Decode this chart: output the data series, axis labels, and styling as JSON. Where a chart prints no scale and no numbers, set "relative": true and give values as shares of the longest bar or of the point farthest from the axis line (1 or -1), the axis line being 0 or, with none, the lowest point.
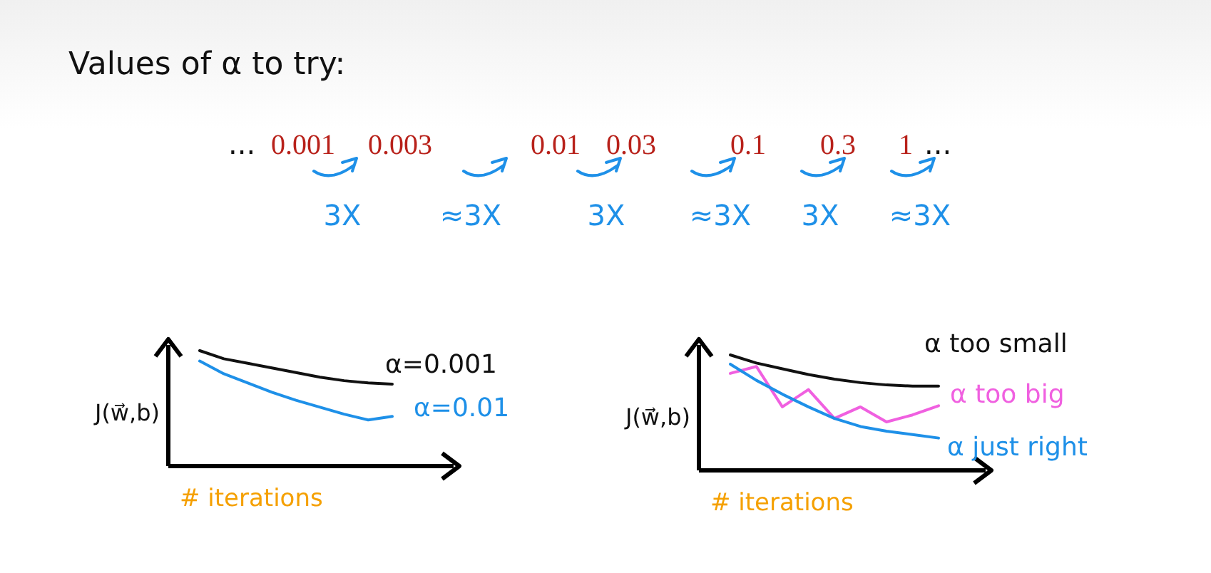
{
  "chart_data": [
    {
      "type": "other",
      "title": "Values of α to try:",
      "annotations": [
        "...",
        "0.001",
        "0.003",
        "0.01",
        "0.03",
        "0.1",
        "0.3",
        "1",
        "...",
        "3X",
        "≈3X",
        "3X",
        "≈3X",
        "3X",
        "≈3X"
      ]
    },
    {
      "type": "line",
      "relative": true,
      "xlabel": "# iterations",
      "ylabel": "J(w⃗,b)",
      "categories": [
        null,
        null,
        null,
        null,
        null,
        null,
        null,
        null,
        null
      ],
      "series": [
        {
          "name": "α=0.001",
          "color": "#111111",
          "values": [
            1,
            0.93,
            0.89,
            0.85,
            0.81,
            0.77,
            0.74,
            0.72,
            0.71
          ]
        },
        {
          "name": "α=0.01",
          "color": "#1e90e8",
          "values": [
            0.91,
            0.8,
            0.72,
            0.64,
            0.57,
            0.51,
            0.45,
            0.4,
            0.43
          ]
        }
      ]
    },
    {
      "type": "line",
      "relative": true,
      "xlabel": "# iterations",
      "ylabel": "J(w⃗,b)",
      "categories": [
        null,
        null,
        null,
        null,
        null,
        null,
        null,
        null,
        null
      ],
      "series": [
        {
          "name": "α too small",
          "color": "#111111",
          "values": [
            1,
            0.93,
            0.88,
            0.83,
            0.79,
            0.76,
            0.74,
            0.73,
            0.73
          ]
        },
        {
          "name": "α too big",
          "color": "#f060e0",
          "values": [
            0.84,
            0.9,
            0.55,
            0.7,
            0.45,
            0.55,
            0.42,
            0.48,
            0.56
          ]
        },
        {
          "name": "α just right",
          "color": "#1e90e8",
          "values": [
            0.92,
            0.78,
            0.66,
            0.55,
            0.45,
            0.38,
            0.34,
            0.31,
            0.28
          ]
        }
      ]
    }
  ]
}
